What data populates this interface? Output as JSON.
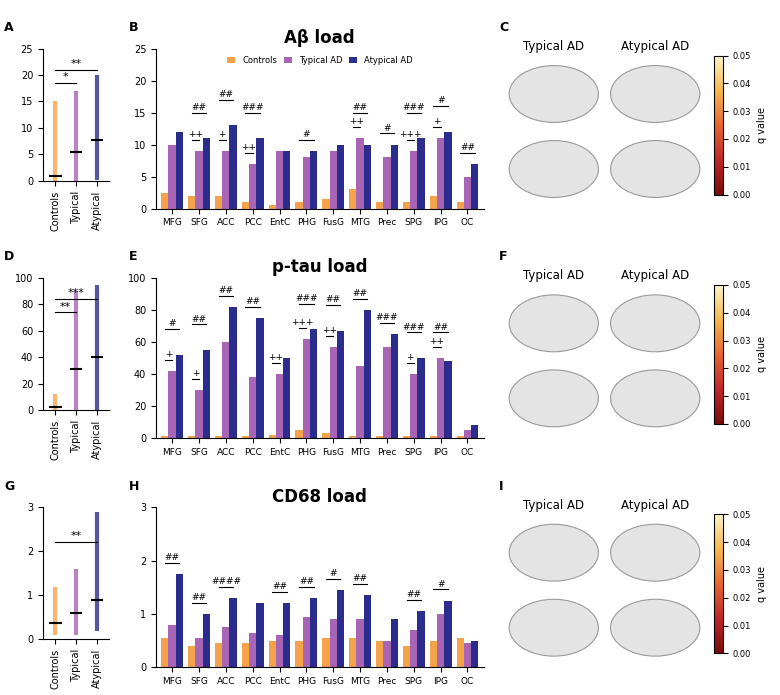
{
  "panel_labels": [
    "A",
    "B",
    "C",
    "D",
    "E",
    "F",
    "G",
    "H",
    "I"
  ],
  "chart_data": [
    {
      "type": "strip",
      "categories": [
        "Controls",
        "Typical",
        "Atypical"
      ],
      "colors": [
        "#f5a34a",
        "#a865b5",
        "#2b2d8e"
      ],
      "values": [
        0.8,
        5.5,
        7.8
      ],
      "min": [
        0,
        0,
        0.2
      ],
      "max": [
        15,
        17,
        20
      ],
      "ylim": [
        0,
        25
      ],
      "yticks": [
        0,
        5,
        10,
        15,
        20,
        25
      ],
      "significance": [
        {
          "pair": [
            "Controls",
            "Typical"
          ],
          "label": "*"
        },
        {
          "pair": [
            "Controls",
            "Atypical"
          ],
          "label": "**"
        }
      ]
    },
    {
      "type": "bar",
      "title": "Aβ load",
      "categories": [
        "MFG",
        "SFG",
        "ACC",
        "PCC",
        "EntC",
        "PHG",
        "FusG",
        "MTG",
        "Prec",
        "SPG",
        "IPG",
        "OC"
      ],
      "series": [
        {
          "name": "Controls",
          "color": "#f5a34a",
          "values": [
            2.5,
            2,
            2,
            1,
            0.5,
            1,
            1.5,
            3,
            1,
            1,
            2,
            1
          ]
        },
        {
          "name": "Typical AD",
          "color": "#a865b5",
          "values": [
            10,
            9,
            9,
            7,
            9,
            8,
            9,
            11,
            8,
            9,
            11,
            5
          ],
          "significance": [
            null,
            "++",
            "+",
            "++",
            null,
            null,
            null,
            "++",
            null,
            "+++",
            "+",
            null
          ]
        },
        {
          "name": "Atypical AD",
          "color": "#2b2d8e",
          "values": [
            12,
            11,
            13,
            11,
            9,
            9,
            10,
            10,
            10,
            11,
            12,
            7
          ],
          "significance": [
            null,
            "##",
            "##",
            "###",
            null,
            "#",
            null,
            "##",
            "#",
            "###",
            "#",
            "##"
          ]
        }
      ],
      "ylim": [
        0,
        25
      ],
      "yticks": [
        0,
        5,
        10,
        15,
        20,
        25
      ],
      "legend": "upper center"
    },
    {
      "type": "strip",
      "categories": [
        "Controls",
        "Typical",
        "Atypical"
      ],
      "colors": [
        "#f5a34a",
        "#a865b5",
        "#2b2d8e"
      ],
      "values": [
        2,
        31,
        40
      ],
      "min": [
        0,
        0,
        0
      ],
      "max": [
        12,
        90,
        95
      ],
      "ylim": [
        0,
        100
      ],
      "yticks": [
        0,
        20,
        40,
        60,
        80,
        100
      ],
      "significance": [
        {
          "pair": [
            "Controls",
            "Typical"
          ],
          "label": "**"
        },
        {
          "pair": [
            "Controls",
            "Atypical"
          ],
          "label": "***"
        }
      ]
    },
    {
      "type": "bar",
      "title": "p-tau load",
      "categories": [
        "MFG",
        "SFG",
        "ACC",
        "PCC",
        "EntC",
        "PHG",
        "FusG",
        "MTG",
        "Prec",
        "SPG",
        "IPG",
        "OC"
      ],
      "series": [
        {
          "color": "#f5a34a",
          "values": [
            1,
            1,
            1,
            1,
            2,
            5,
            3,
            1,
            1,
            1,
            1,
            1
          ]
        },
        {
          "color": "#a865b5",
          "values": [
            42,
            30,
            60,
            38,
            40,
            62,
            57,
            45,
            57,
            40,
            50,
            5
          ],
          "significance": [
            "+",
            "+",
            null,
            null,
            "++",
            "+++",
            "++",
            null,
            null,
            "+",
            "++",
            null
          ]
        },
        {
          "color": "#2b2d8e",
          "values": [
            52,
            55,
            82,
            75,
            50,
            68,
            67,
            80,
            65,
            50,
            48,
            8
          ],
          "significance": [
            "#",
            "##",
            "##",
            "##",
            null,
            "###",
            "##",
            "##",
            "###",
            "###",
            "##",
            null
          ]
        }
      ],
      "ylim": [
        0,
        100
      ],
      "yticks": [
        0,
        20,
        40,
        60,
        80,
        100
      ]
    },
    {
      "type": "strip",
      "categories": [
        "Controls",
        "Typical",
        "Atypical"
      ],
      "colors": [
        "#f5a34a",
        "#a865b5",
        "#2b2d8e"
      ],
      "values": [
        0.38,
        0.6,
        0.9
      ],
      "min": [
        0.1,
        0.1,
        0.2
      ],
      "max": [
        1.2,
        1.6,
        2.9
      ],
      "ylim": [
        0,
        3
      ],
      "yticks": [
        0,
        1,
        2,
        3
      ],
      "significance": [
        {
          "pair": [
            "Controls",
            "Atypical"
          ],
          "label": "**"
        }
      ]
    },
    {
      "type": "bar",
      "title": "CD68 load",
      "categories": [
        "MFG",
        "SFG",
        "ACC",
        "PCC",
        "EntC",
        "PHG",
        "FusG",
        "MTG",
        "Prec",
        "SPG",
        "IPG",
        "OC"
      ],
      "series": [
        {
          "color": "#f5a34a",
          "values": [
            0.55,
            0.4,
            0.45,
            0.45,
            0.5,
            0.5,
            0.55,
            0.55,
            0.5,
            0.4,
            0.5,
            0.55
          ]
        },
        {
          "color": "#a865b5",
          "values": [
            0.8,
            0.55,
            0.75,
            0.65,
            0.6,
            0.95,
            0.9,
            0.9,
            0.5,
            0.7,
            1.0,
            0.45
          ]
        },
        {
          "color": "#2b2d8e",
          "values": [
            1.75,
            1.0,
            1.3,
            1.2,
            1.2,
            1.3,
            1.45,
            1.35,
            0.9,
            1.05,
            1.25,
            0.5
          ],
          "significance": [
            "##",
            "##",
            "####",
            null,
            "##",
            "##",
            "#",
            "##",
            null,
            "##",
            "#",
            null
          ]
        }
      ],
      "ylim": [
        0,
        3
      ],
      "yticks": [
        0,
        1,
        2,
        3
      ]
    }
  ],
  "brain_maps": [
    {
      "titles": [
        "Typical AD",
        "Atypical AD"
      ],
      "colorbar": {
        "label": "q value",
        "range": [
          0,
          0.05
        ],
        "ticks": [
          {
            "value": 0,
            "label": "0.00"
          },
          0.01,
          0.02,
          0.03,
          0.04,
          0.05
        ]
      }
    },
    {
      "titles": [
        "Typical AD",
        "Atypical AD"
      ],
      "colorbar": {
        "label": "q value",
        "range": [
          0,
          0.05
        ],
        "ticks": [
          {
            "value": 0,
            "label": "0.00"
          },
          0.01,
          0.02,
          0.03,
          0.04,
          0.05
        ]
      }
    },
    {
      "titles": [
        "Typical AD",
        "Atypical AD"
      ],
      "colorbar": {
        "label": "q value",
        "range": [
          0,
          0.05
        ],
        "ticks": [
          {
            "value": 0,
            "label": "0.00"
          },
          0.01,
          0.02,
          0.03,
          0.04,
          0.05
        ]
      }
    }
  ]
}
